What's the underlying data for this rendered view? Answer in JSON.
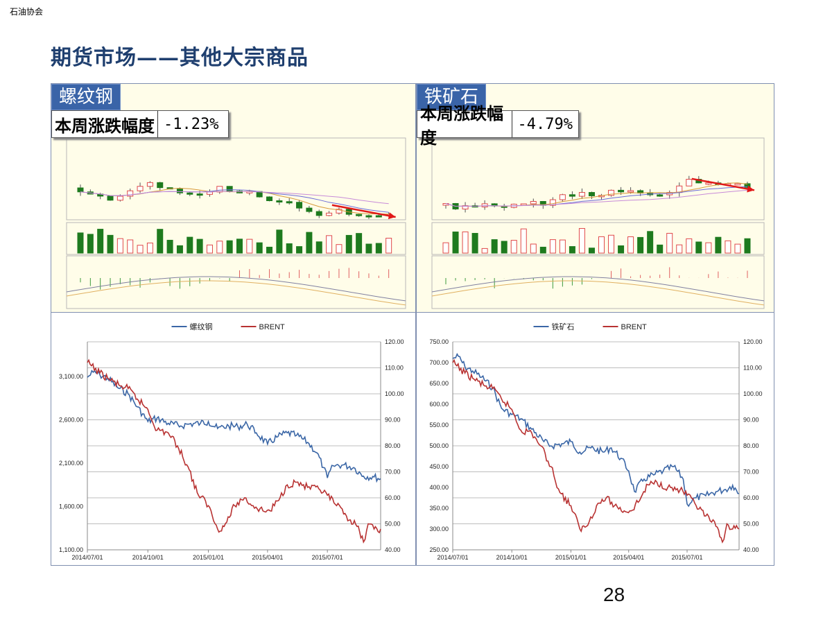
{
  "header": {
    "org": "石油协会",
    "title": "期货市场——其他大宗商品",
    "page_number": "28"
  },
  "colors": {
    "series_a": "#3a66a6",
    "series_b": "#b83232",
    "up": "#ff9aa2",
    "down": "#1e7a1e",
    "tag_bg": "#3a64a8"
  },
  "icons": {
    "trend_arrow": "red-arrow-icon"
  },
  "panels": [
    {
      "tag": "螺纹钢",
      "change_label": "本周涨跌幅度",
      "change_value": "-1.23%"
    },
    {
      "tag": "铁矿石",
      "change_label": "本周涨跌幅度",
      "change_value": "-4.79%"
    }
  ],
  "chart_data": [
    {
      "type": "line",
      "legend": [
        "螺纹钢",
        "BRENT"
      ],
      "x_ticks": [
        "2014/07/01",
        "2014/10/01",
        "2015/01/01",
        "2015/04/01",
        "2015/07/01"
      ],
      "x_range": [
        "2014/07/01",
        "2015/09/20"
      ],
      "y_left": {
        "ticks": [
          "1,100.00",
          "1,600.00",
          "2,100.00",
          "2,600.00",
          "3,100.00"
        ],
        "range": [
          1100,
          3500
        ]
      },
      "y_right": {
        "ticks": [
          "40.00",
          "50.00",
          "60.00",
          "70.00",
          "80.00",
          "90.00",
          "100.00",
          "110.00",
          "120.00"
        ],
        "range": [
          40,
          120
        ]
      },
      "grid": true,
      "legend_position": "top-center",
      "series": [
        {
          "name": "螺纹钢",
          "axis": "left",
          "points": [
            [
              "2014/07/01",
              3090
            ],
            [
              "2014/07/10",
              3150
            ],
            [
              "2014/07/20",
              3120
            ],
            [
              "2014/08/01",
              3080
            ],
            [
              "2014/08/15",
              2980
            ],
            [
              "2014/09/01",
              2900
            ],
            [
              "2014/09/15",
              2750
            ],
            [
              "2014/10/01",
              2580
            ],
            [
              "2014/10/15",
              2620
            ],
            [
              "2014/11/01",
              2560
            ],
            [
              "2014/11/20",
              2530
            ],
            [
              "2014/12/01",
              2550
            ],
            [
              "2014/12/20",
              2560
            ],
            [
              "2015/01/01",
              2580
            ],
            [
              "2015/01/15",
              2500
            ],
            [
              "2015/02/01",
              2530
            ],
            [
              "2015/02/15",
              2520
            ],
            [
              "2015/03/01",
              2550
            ],
            [
              "2015/03/15",
              2450
            ],
            [
              "2015/04/01",
              2320
            ],
            [
              "2015/04/15",
              2400
            ],
            [
              "2015/05/01",
              2450
            ],
            [
              "2015/05/15",
              2420
            ],
            [
              "2015/06/01",
              2340
            ],
            [
              "2015/06/15",
              2220
            ],
            [
              "2015/06/25",
              2050
            ],
            [
              "2015/07/01",
              1930
            ],
            [
              "2015/07/10",
              2070
            ],
            [
              "2015/07/25",
              2080
            ],
            [
              "2015/08/10",
              2050
            ],
            [
              "2015/08/25",
              1950
            ],
            [
              "2015/09/10",
              1940
            ],
            [
              "2015/09/20",
              1920
            ]
          ]
        },
        {
          "name": "BRENT",
          "axis": "right",
          "points": [
            [
              "2014/07/01",
              112
            ],
            [
              "2014/07/20",
              108
            ],
            [
              "2014/08/01",
              106
            ],
            [
              "2014/08/20",
              103
            ],
            [
              "2014/09/01",
              102
            ],
            [
              "2014/09/15",
              98
            ],
            [
              "2014/10/01",
              94
            ],
            [
              "2014/10/15",
              86
            ],
            [
              "2014/11/01",
              85
            ],
            [
              "2014/11/15",
              80
            ],
            [
              "2014/12/01",
              72
            ],
            [
              "2014/12/15",
              62
            ],
            [
              "2015/01/01",
              57
            ],
            [
              "2015/01/15",
              48
            ],
            [
              "2015/01/25",
              49
            ],
            [
              "2015/02/10",
              57
            ],
            [
              "2015/02/25",
              60
            ],
            [
              "2015/03/10",
              57
            ],
            [
              "2015/03/25",
              55
            ],
            [
              "2015/04/05",
              55
            ],
            [
              "2015/04/20",
              60
            ],
            [
              "2015/05/01",
              65
            ],
            [
              "2015/05/15",
              66
            ],
            [
              "2015/06/01",
              64
            ],
            [
              "2015/06/20",
              63
            ],
            [
              "2015/07/01",
              61
            ],
            [
              "2015/07/15",
              57
            ],
            [
              "2015/07/30",
              53
            ],
            [
              "2015/08/15",
              49
            ],
            [
              "2015/08/25",
              43
            ],
            [
              "2015/09/01",
              50
            ],
            [
              "2015/09/10",
              48
            ],
            [
              "2015/09/20",
              48
            ]
          ]
        }
      ]
    },
    {
      "type": "line",
      "legend": [
        "铁矿石",
        "BRENT"
      ],
      "x_ticks": [
        "2014/07/01",
        "2014/10/01",
        "2015/01/01",
        "2015/04/01",
        "2015/07/01"
      ],
      "x_range": [
        "2014/07/01",
        "2015/09/20"
      ],
      "y_left": {
        "ticks": [
          "250.00",
          "300.00",
          "350.00",
          "400.00",
          "450.00",
          "500.00",
          "550.00",
          "600.00",
          "650.00",
          "700.00",
          "750.00"
        ],
        "range": [
          250,
          750
        ]
      },
      "y_right": {
        "ticks": [
          "40.00",
          "50.00",
          "60.00",
          "70.00",
          "80.00",
          "90.00",
          "100.00",
          "110.00",
          "120.00"
        ],
        "range": [
          40,
          120
        ]
      },
      "grid": true,
      "legend_position": "top-center",
      "series": [
        {
          "name": "铁矿石",
          "axis": "left",
          "points": [
            [
              "2014/07/01",
              710
            ],
            [
              "2014/07/10",
              715
            ],
            [
              "2014/07/20",
              690
            ],
            [
              "2014/08/01",
              680
            ],
            [
              "2014/08/15",
              665
            ],
            [
              "2014/09/01",
              640
            ],
            [
              "2014/09/15",
              590
            ],
            [
              "2014/10/01",
              575
            ],
            [
              "2014/10/15",
              565
            ],
            [
              "2014/11/01",
              540
            ],
            [
              "2014/11/20",
              510
            ],
            [
              "2014/12/01",
              500
            ],
            [
              "2014/12/20",
              505
            ],
            [
              "2015/01/01",
              510
            ],
            [
              "2015/01/15",
              485
            ],
            [
              "2015/02/01",
              495
            ],
            [
              "2015/02/20",
              485
            ],
            [
              "2015/03/05",
              495
            ],
            [
              "2015/03/20",
              470
            ],
            [
              "2015/04/01",
              440
            ],
            [
              "2015/04/10",
              390
            ],
            [
              "2015/04/25",
              420
            ],
            [
              "2015/05/10",
              430
            ],
            [
              "2015/05/25",
              440
            ],
            [
              "2015/06/10",
              450
            ],
            [
              "2015/06/25",
              420
            ],
            [
              "2015/07/01",
              360
            ],
            [
              "2015/07/15",
              375
            ],
            [
              "2015/07/30",
              380
            ],
            [
              "2015/08/15",
              390
            ],
            [
              "2015/08/30",
              395
            ],
            [
              "2015/09/10",
              405
            ],
            [
              "2015/09/20",
              385
            ]
          ]
        },
        {
          "name": "BRENT",
          "axis": "right",
          "points": [
            [
              "2014/07/01",
              112
            ],
            [
              "2014/07/20",
              108
            ],
            [
              "2014/08/01",
              106
            ],
            [
              "2014/08/20",
              103
            ],
            [
              "2014/09/01",
              102
            ],
            [
              "2014/09/15",
              98
            ],
            [
              "2014/10/01",
              94
            ],
            [
              "2014/10/15",
              86
            ],
            [
              "2014/11/01",
              85
            ],
            [
              "2014/11/15",
              80
            ],
            [
              "2014/12/01",
              72
            ],
            [
              "2014/12/15",
              62
            ],
            [
              "2015/01/01",
              57
            ],
            [
              "2015/01/15",
              48
            ],
            [
              "2015/01/25",
              49
            ],
            [
              "2015/02/10",
              57
            ],
            [
              "2015/02/25",
              60
            ],
            [
              "2015/03/10",
              57
            ],
            [
              "2015/03/25",
              55
            ],
            [
              "2015/04/05",
              55
            ],
            [
              "2015/04/20",
              60
            ],
            [
              "2015/05/01",
              65
            ],
            [
              "2015/05/15",
              66
            ],
            [
              "2015/06/01",
              64
            ],
            [
              "2015/06/20",
              63
            ],
            [
              "2015/07/01",
              61
            ],
            [
              "2015/07/15",
              57
            ],
            [
              "2015/07/30",
              53
            ],
            [
              "2015/08/15",
              49
            ],
            [
              "2015/08/25",
              43
            ],
            [
              "2015/09/01",
              50
            ],
            [
              "2015/09/10",
              48
            ],
            [
              "2015/09/20",
              48
            ]
          ]
        }
      ]
    }
  ]
}
